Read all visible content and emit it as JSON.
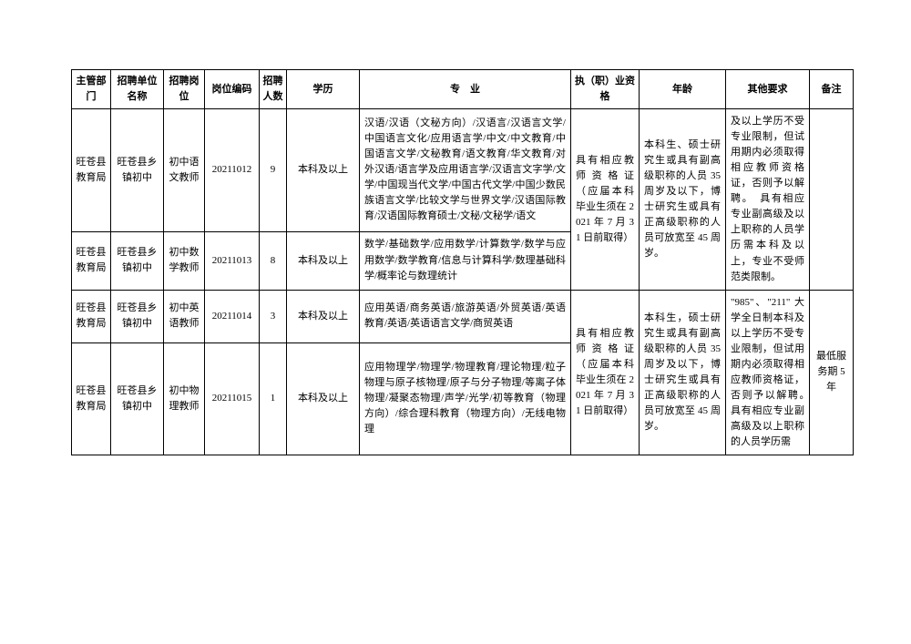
{
  "headers": {
    "dept": "主管部门",
    "unit": "招聘单位名称",
    "post": "招聘岗位",
    "code": "岗位编码",
    "count": "招聘人数",
    "edu": "学历",
    "major": "专　业",
    "qual": "执（职）业资格",
    "age": "年龄",
    "other": "其他要求",
    "note": "备注"
  },
  "shared": {
    "qual_top": "具有相应教师资格证（应届本科毕业生须在 2021 年 7 月 31 日前取得）",
    "qual_bot": "具有相应教师资格证（应届本科毕业生须在 2021 年 7 月 31 日前取得）",
    "age_top": "本科生、硕士研究生或具有副高级职称的人员 35 周岁及以下，博士研究生或具有正高级职称的人员可放宽至 45 周岁。",
    "age_bot": "本科生，硕士研究生或具有副高级职称的人员 35 周岁及以下，博士研究生或具有正高级职称的人员可放宽至 45 周岁。",
    "other_top": "及以上学历不受专业限制，但试用期内必须取得相应教师资格证，否则予以解聘。　具有相应专业副高级及以上职称的人员学历需本科及以上，专业不受师范类限制。",
    "other_bot": "\"985\"、\"211\" 大学全日制本科及以上学历不受专业限制，但试用期内必须取得相应教师资格证，否则予以解聘。　具有相应专业副高级及以上职称的人员学历需",
    "note_bot": "最低服务期 5 年"
  },
  "rows": [
    {
      "dept": "旺苍县教育局",
      "unit": "旺苍县乡镇初中",
      "post": "初中语文教师",
      "code": "20211012",
      "count": "9",
      "edu": "本科及以上",
      "major": "汉语/汉语（文秘方向）/汉语言/汉语言文学/中国语言文化/应用语言学/中文/中文教育/中国语言文学/文秘教育/语文教育/华文教育/对外汉语/语言学及应用语言学/汉语言文字学/文学/中国现当代文学/中国古代文学/中国少数民族语言文学/比较文学与世界文学/汉语国际教育/汉语国际教育硕士/文秘/文秘学/语文"
    },
    {
      "dept": "旺苍县教育局",
      "unit": "旺苍县乡镇初中",
      "post": "初中数学教师",
      "code": "20211013",
      "count": "8",
      "edu": "本科及以上",
      "major": "数学/基础数学/应用数学/计算数学/数学与应用数学/数学教育/信息与计算科学/数理基础科学/概率论与数理统计"
    },
    {
      "dept": "旺苍县教育局",
      "unit": "旺苍县乡镇初中",
      "post": "初中英语教师",
      "code": "20211014",
      "count": "3",
      "edu": "本科及以上",
      "major": "应用英语/商务英语/旅游英语/外贸英语/英语教育/英语/英语语言文学/商贸英语"
    },
    {
      "dept": "旺苍县教育局",
      "unit": "旺苍县乡镇初中",
      "post": "初中物理教师",
      "code": "20211015",
      "count": "1",
      "edu": "本科及以上",
      "major": "应用物理学/物理学/物理教育/理论物理/粒子物理与原子核物理/原子与分子物理/等离子体物理/凝聚态物理/声学/光学/初等教育（物理方向）/综合理科教育（物理方向）/无线电物理"
    }
  ]
}
